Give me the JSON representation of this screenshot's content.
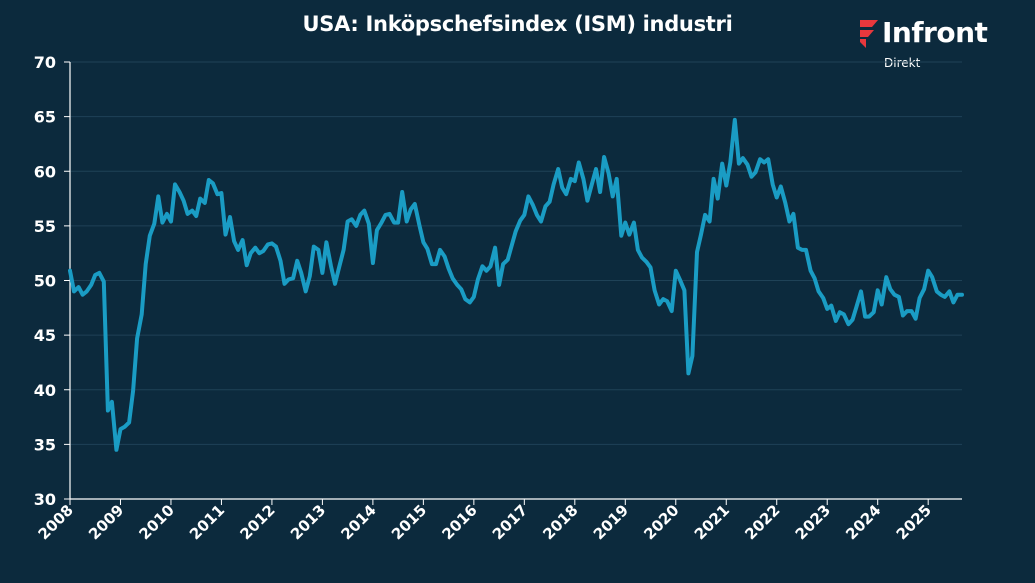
{
  "logo": {
    "name": "Infront",
    "sub": "Direkt",
    "mark_color": "#e8383d"
  },
  "chart_data": {
    "type": "line",
    "title": "USA: Inköpschefsindex (ISM) industri",
    "xlabel": "",
    "ylabel": "",
    "ylim": [
      30,
      70
    ],
    "yticks": [
      30,
      35,
      40,
      45,
      50,
      55,
      60,
      65,
      70
    ],
    "xlim": [
      2008.0,
      2025.67
    ],
    "xticks": [
      "2008",
      "2009",
      "2010",
      "2011",
      "2012",
      "2013",
      "2014",
      "2015",
      "2016",
      "2017",
      "2018",
      "2019",
      "2020",
      "2021",
      "2022",
      "2023",
      "2024",
      "2025"
    ],
    "grid": true,
    "background": "#0c2a3d",
    "line_color": "#1a9cc4",
    "series": [
      {
        "x": [
          2008.0,
          2008.08,
          2008.17,
          2008.25,
          2008.33,
          2008.42,
          2008.5,
          2008.58,
          2008.67,
          2008.75,
          2008.83,
          2008.92,
          2009.0,
          2009.08,
          2009.17,
          2009.25,
          2009.33,
          2009.42,
          2009.5,
          2009.58,
          2009.67,
          2009.75,
          2009.83,
          2009.92,
          2010.0,
          2010.08,
          2010.17,
          2010.25,
          2010.33,
          2010.42,
          2010.5,
          2010.58,
          2010.67,
          2010.75,
          2010.83,
          2010.92,
          2011.0,
          2011.08,
          2011.17,
          2011.25,
          2011.33,
          2011.42,
          2011.5,
          2011.58,
          2011.67,
          2011.75,
          2011.83,
          2011.92,
          2012.0,
          2012.08,
          2012.17,
          2012.25,
          2012.33,
          2012.42,
          2012.5,
          2012.58,
          2012.67,
          2012.75,
          2012.83,
          2012.92,
          2013.0,
          2013.08,
          2013.17,
          2013.25,
          2013.33,
          2013.42,
          2013.5,
          2013.58,
          2013.67,
          2013.75,
          2013.83,
          2013.92,
          2014.0,
          2014.08,
          2014.17,
          2014.25,
          2014.33,
          2014.42,
          2014.5,
          2014.58,
          2014.67,
          2014.75,
          2014.83,
          2014.92,
          2015.0,
          2015.08,
          2015.17,
          2015.25,
          2015.33,
          2015.42,
          2015.5,
          2015.58,
          2015.67,
          2015.75,
          2015.83,
          2015.92,
          2016.0,
          2016.08,
          2016.17,
          2016.25,
          2016.33,
          2016.42,
          2016.5,
          2016.58,
          2016.67,
          2016.75,
          2016.83,
          2016.92,
          2017.0,
          2017.08,
          2017.17,
          2017.25,
          2017.33,
          2017.42,
          2017.5,
          2017.58,
          2017.67,
          2017.75,
          2017.83,
          2017.92,
          2018.0,
          2018.08,
          2018.17,
          2018.25,
          2018.33,
          2018.42,
          2018.5,
          2018.58,
          2018.67,
          2018.75,
          2018.83,
          2018.92,
          2019.0,
          2019.08,
          2019.17,
          2019.25,
          2019.33,
          2019.42,
          2019.5,
          2019.58,
          2019.67,
          2019.75,
          2019.83,
          2019.92,
          2020.0,
          2020.08,
          2020.17,
          2020.25,
          2020.33,
          2020.42,
          2020.5,
          2020.58,
          2020.67,
          2020.75,
          2020.83,
          2020.92,
          2021.0,
          2021.08,
          2021.17,
          2021.25,
          2021.33,
          2021.42,
          2021.5,
          2021.58,
          2021.67,
          2021.75,
          2021.83,
          2021.92,
          2022.0,
          2022.08,
          2022.17,
          2022.25,
          2022.33,
          2022.42,
          2022.5,
          2022.58,
          2022.67,
          2022.75,
          2022.83,
          2022.92,
          2023.0,
          2023.08,
          2023.17,
          2023.25,
          2023.33,
          2023.42,
          2023.5,
          2023.58,
          2023.67,
          2023.75,
          2023.83,
          2023.92,
          2024.0,
          2024.08,
          2024.17,
          2024.25,
          2024.33,
          2024.42,
          2024.5,
          2024.58,
          2024.67,
          2024.75,
          2024.83,
          2024.92,
          2025.0,
          2025.08,
          2025.17,
          2025.25,
          2025.33,
          2025.42,
          2025.5,
          2025.58,
          2025.67
        ],
        "values": [
          50.9,
          49.0,
          49.4,
          48.7,
          49.0,
          49.6,
          50.5,
          50.7,
          49.9,
          38.1,
          38.9,
          34.5,
          36.4,
          36.6,
          37.0,
          39.9,
          44.7,
          46.9,
          51.5,
          54.1,
          55.2,
          57.7,
          55.3,
          56.1,
          55.4,
          58.8,
          58.1,
          57.3,
          56.1,
          56.4,
          55.9,
          57.5,
          57.1,
          59.2,
          58.9,
          57.9,
          58.0,
          54.2,
          55.8,
          53.6,
          52.8,
          53.7,
          51.4,
          52.5,
          53.0,
          52.5,
          52.7,
          53.3,
          53.4,
          53.1,
          51.8,
          49.7,
          50.1,
          50.2,
          51.8,
          50.7,
          49.0,
          50.4,
          53.1,
          52.8,
          50.7,
          53.5,
          51.3,
          49.7,
          51.2,
          52.8,
          55.4,
          55.6,
          55.0,
          56.0,
          56.4,
          55.2,
          51.6,
          54.6,
          55.3,
          56.0,
          56.1,
          55.3,
          55.3,
          58.1,
          55.4,
          56.5,
          57.0,
          55.1,
          53.5,
          52.9,
          51.5,
          51.5,
          52.8,
          52.2,
          51.1,
          50.2,
          49.6,
          49.2,
          48.3,
          48.0,
          48.5,
          50.1,
          51.3,
          50.9,
          51.3,
          53.0,
          49.6,
          51.5,
          51.9,
          53.2,
          54.5,
          55.5,
          56.0,
          57.7,
          56.9,
          56.0,
          55.4,
          56.8,
          57.2,
          58.8,
          60.2,
          58.5,
          57.9,
          59.3,
          59.1,
          60.8,
          59.3,
          57.3,
          58.7,
          60.2,
          58.1,
          61.3,
          59.8,
          57.7,
          59.3,
          54.1,
          55.3,
          54.2,
          55.3,
          52.8,
          52.1,
          51.7,
          51.2,
          49.1,
          47.8,
          48.3,
          48.1,
          47.2,
          50.9,
          50.1,
          49.1,
          41.5,
          43.1,
          52.6,
          54.2,
          56.0,
          55.4,
          59.3,
          57.5,
          60.7,
          58.7,
          60.8,
          64.7,
          60.7,
          61.2,
          60.6,
          59.5,
          59.9,
          61.1,
          60.8,
          61.1,
          58.8,
          57.6,
          58.6,
          57.1,
          55.4,
          56.1,
          53.0,
          52.8,
          52.8,
          50.9,
          50.2,
          49.0,
          48.4,
          47.4,
          47.7,
          46.3,
          47.1,
          46.9,
          46.0,
          46.4,
          47.6,
          49.0,
          46.7,
          46.7,
          47.1,
          49.1,
          47.8,
          50.3,
          49.2,
          48.7,
          48.5,
          46.8,
          47.2,
          47.2,
          46.5,
          48.4,
          49.2,
          50.9,
          50.3,
          49.0,
          48.7,
          48.5,
          49.0,
          48.0,
          48.7,
          48.7
        ]
      }
    ]
  }
}
